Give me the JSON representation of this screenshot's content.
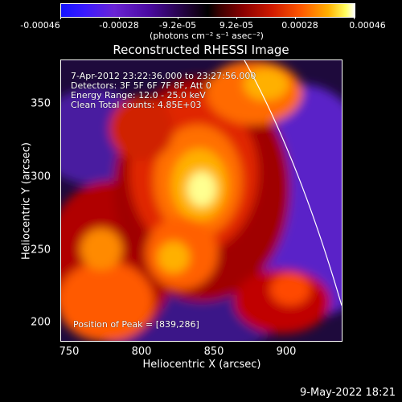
{
  "colorbar": {
    "tick_labels": [
      "-0.00046",
      "-0.00028",
      "-9.2e-05",
      "9.2e-05",
      "0.00028",
      "0.00046"
    ],
    "units": "(photons cm⁻² s⁻¹ asec⁻²)"
  },
  "plot": {
    "title": "Reconstructed RHESSI Image",
    "time_range": "7-Apr-2012 23:22:36.000 to 23:27:56.000",
    "detectors": "Detectors: 3F 5F 6F 7F 8F, Att 0",
    "energy_range": "Energy Range: 12.0 - 25.0 keV",
    "clean_info": "Clean    Total counts: 4.85E+03",
    "peak_position": "Position of Peak = [839,286]"
  },
  "chart_data": {
    "type": "heatmap",
    "title": "Reconstructed RHESSI Image",
    "xlabel": "Heliocentric X (arcsec)",
    "ylabel": "Heliocentric Y (arcsec)",
    "xlim": [
      745,
      940
    ],
    "ylim": [
      188,
      383
    ],
    "x_ticks": [
      750,
      800,
      850,
      900
    ],
    "y_ticks": [
      200,
      250,
      300,
      350
    ],
    "color_range": [
      -0.00046,
      0.00046
    ],
    "peak": [
      839,
      286
    ],
    "limb_curve": [
      [
        880,
        383
      ],
      [
        905,
        320
      ],
      [
        925,
        250
      ],
      [
        940,
        200
      ]
    ]
  },
  "timestamp": "9-May-2022 18:21",
  "colors": {
    "background": "#000000",
    "text": "#ffffff",
    "negative": "#5a1fc8",
    "positive_low": "#c80000",
    "positive_high": "#ffe040",
    "peak": "#ffffff"
  }
}
